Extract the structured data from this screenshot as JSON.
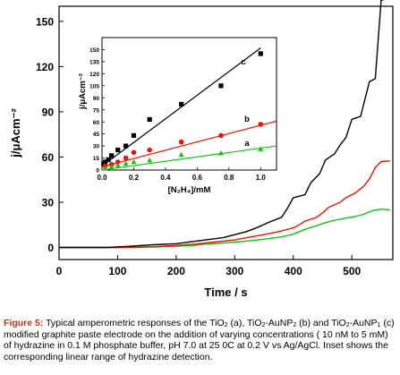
{
  "chart_data": [
    {
      "type": "line",
      "role": "main",
      "xlabel": "Time / s",
      "ylabel": "j/μAcm⁻²",
      "xlim": [
        0,
        570
      ],
      "ylim": [
        -8,
        160
      ],
      "xticks": [
        0,
        100,
        200,
        300,
        400,
        500
      ],
      "yticks": [
        0,
        30,
        60,
        90,
        120,
        150
      ],
      "grid": false,
      "legend": "none",
      "series": [
        {
          "name": "a",
          "color": "#12c412",
          "points": [
            [
              0,
              0
            ],
            [
              100,
              0
            ],
            [
              160,
              0.3
            ],
            [
              200,
              0.8
            ],
            [
              230,
              1.4
            ],
            [
              250,
              2.2
            ],
            [
              280,
              3.0
            ],
            [
              300,
              3.5
            ],
            [
              320,
              4.2
            ],
            [
              350,
              5.5
            ],
            [
              380,
              7.0
            ],
            [
              400,
              8.8
            ],
            [
              410,
              10.5
            ],
            [
              420,
              12.0
            ],
            [
              440,
              14.5
            ],
            [
              455,
              16.5
            ],
            [
              470,
              18.0
            ],
            [
              490,
              19.5
            ],
            [
              505,
              20.5
            ],
            [
              520,
              22.0
            ],
            [
              535,
              24.5
            ],
            [
              550,
              25.5
            ],
            [
              565,
              25.0
            ]
          ]
        },
        {
          "name": "b",
          "color": "#e8150c",
          "points": [
            [
              0,
              0
            ],
            [
              100,
              0
            ],
            [
              160,
              0.5
            ],
            [
              200,
              1.4
            ],
            [
              230,
              2.2
            ],
            [
              250,
              3.0
            ],
            [
              280,
              4.2
            ],
            [
              300,
              5.0
            ],
            [
              320,
              6.5
            ],
            [
              350,
              8.5
            ],
            [
              375,
              10.5
            ],
            [
              400,
              13.0
            ],
            [
              410,
              15.0
            ],
            [
              420,
              17.5
            ],
            [
              440,
              20.0
            ],
            [
              450,
              23.0
            ],
            [
              460,
              26.5
            ],
            [
              480,
              30.0
            ],
            [
              490,
              33.0
            ],
            [
              505,
              36.0
            ],
            [
              520,
              40.5
            ],
            [
              530,
              45.5
            ],
            [
              540,
              53.0
            ],
            [
              550,
              57.0
            ],
            [
              565,
              57.5
            ]
          ]
        },
        {
          "name": "c",
          "color": "#000000",
          "points": [
            [
              0,
              0
            ],
            [
              80,
              0
            ],
            [
              120,
              0.8
            ],
            [
              160,
              1.8
            ],
            [
              200,
              2.5
            ],
            [
              220,
              3.5
            ],
            [
              250,
              5.0
            ],
            [
              280,
              6.5
            ],
            [
              300,
              8.5
            ],
            [
              320,
              10.5
            ],
            [
              340,
              13.5
            ],
            [
              360,
              17.0
            ],
            [
              380,
              20.0
            ],
            [
              390,
              26.0
            ],
            [
              400,
              33.0
            ],
            [
              420,
              35.0
            ],
            [
              430,
              43.0
            ],
            [
              445,
              49.0
            ],
            [
              455,
              58.0
            ],
            [
              470,
              62.0
            ],
            [
              480,
              68.0
            ],
            [
              490,
              73.0
            ],
            [
              500,
              85.0
            ],
            [
              515,
              87.0
            ],
            [
              530,
              110.0
            ],
            [
              540,
              112.0
            ],
            [
              550,
              164.0
            ],
            [
              560,
              165.0
            ],
            [
              565,
              166.0
            ]
          ]
        }
      ],
      "series_labels": [
        "c",
        "b",
        "a"
      ]
    },
    {
      "type": "scatter",
      "role": "inset",
      "xlabel": "[N₂H₄]/mM",
      "ylabel": "j/μAcm⁻²",
      "xlim": [
        0,
        1.1
      ],
      "ylim": [
        0,
        165
      ],
      "xticks": [
        0.0,
        0.2,
        0.4,
        0.6,
        0.8,
        1.0
      ],
      "yticks": [
        0,
        15,
        30,
        45,
        60,
        75,
        90,
        105,
        120,
        135,
        150
      ],
      "series": [
        {
          "name": "c",
          "color": "#000000",
          "marker": "square",
          "x": [
            0.01,
            0.02,
            0.04,
            0.06,
            0.1,
            0.15,
            0.2,
            0.3,
            0.5,
            0.75,
            1.0
          ],
          "y": [
            8,
            10,
            13,
            18,
            25,
            30,
            43,
            63,
            82,
            105,
            145
          ],
          "fit": [
            [
              0,
              5
            ],
            [
              1.0,
              152
            ]
          ]
        },
        {
          "name": "b",
          "color": "#e8150c",
          "marker": "circle",
          "x": [
            0.02,
            0.06,
            0.1,
            0.15,
            0.2,
            0.3,
            0.5,
            0.75,
            1.0
          ],
          "y": [
            5,
            7,
            10,
            15,
            22,
            25,
            35,
            43,
            57
          ],
          "fit": [
            [
              0,
              4
            ],
            [
              1.1,
              61
            ]
          ]
        },
        {
          "name": "a",
          "color": "#12c412",
          "marker": "triangle",
          "x": [
            0.02,
            0.06,
            0.1,
            0.15,
            0.2,
            0.3,
            0.5,
            0.75,
            1.0
          ],
          "y": [
            2,
            4,
            6,
            8,
            10,
            12,
            19,
            21,
            26
          ],
          "fit": [
            [
              0,
              0
            ],
            [
              1.1,
              30
            ]
          ]
        }
      ],
      "series_labels": [
        "c",
        "b",
        "a"
      ]
    }
  ],
  "caption": {
    "label": "Figure 5:",
    "parts": [
      " Typical amperometric responses of the TiO",
      "2",
      " (a), TiO",
      "2",
      "-AuNP",
      "2",
      " (b) and TiO",
      "2",
      "-AuNP",
      "1",
      " (c) modified graphite paste electrode on the addition of varying concentrations ( 10 nM to 5 mM) of hydrazine in 0.1 M phosphate buffer, pH 7.0 at 25 0C at 0.2 V vs Ag/AgCl. Inset shows the corresponding linear range of hydrazine detection."
    ]
  }
}
